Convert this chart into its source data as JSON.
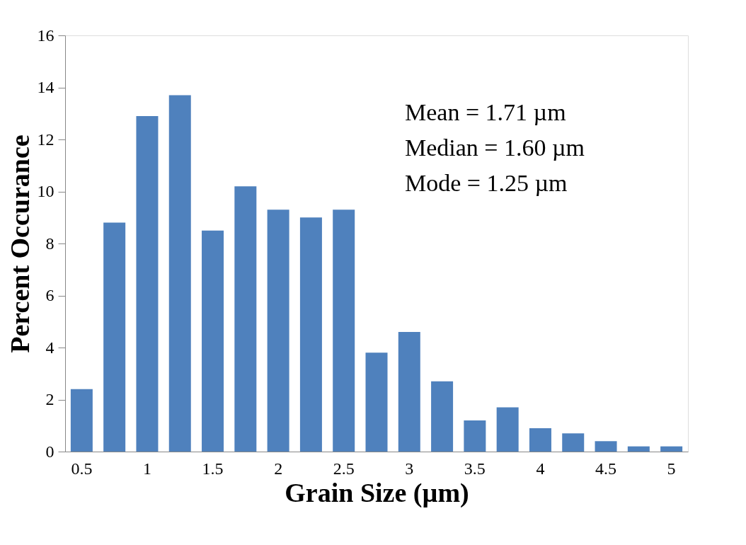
{
  "chart_data": {
    "type": "bar",
    "xlabel": "Grain Size (µm)",
    "ylabel": "Percent Occurance",
    "categories": [
      "0.5",
      null,
      "1",
      null,
      "1.5",
      null,
      "2",
      null,
      "2.5",
      null,
      "3",
      null,
      "3.5",
      null,
      "4",
      null,
      "4.5",
      null,
      "5"
    ],
    "values": [
      2.4,
      8.8,
      12.9,
      13.7,
      8.5,
      10.2,
      9.3,
      9.0,
      9.3,
      3.8,
      4.6,
      2.7,
      1.2,
      1.7,
      0.9,
      0.7,
      0.4,
      0.2,
      0.2
    ],
    "color": "#4f81bd",
    "ylim": [
      0,
      16
    ],
    "yticks": [
      0,
      2,
      4,
      6,
      8,
      10,
      12,
      14,
      16
    ],
    "grid": false,
    "annotations": [
      "Mean = 1.71 µm",
      "Median = 1.60 µm",
      "Mode = 1.25 µm"
    ]
  }
}
